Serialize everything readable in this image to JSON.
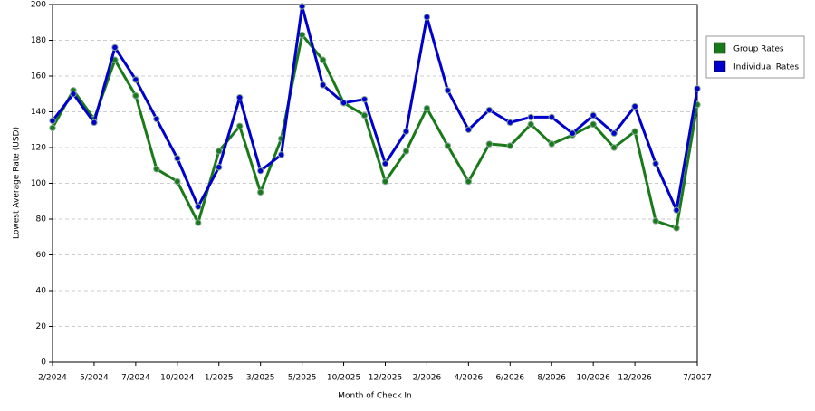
{
  "chart_data": {
    "type": "line",
    "x_label": "Month of Check In",
    "y_label": "Lowest Average Rate (USD)",
    "categories": [
      "2/2024",
      null,
      "5/2024",
      null,
      "7/2024",
      null,
      "10/2024",
      null,
      "1/2025",
      null,
      "3/2025",
      null,
      "5/2025",
      null,
      "10/2025",
      null,
      "12/2025",
      null,
      "2/2026",
      null,
      "4/2026",
      null,
      "6/2026",
      null,
      "8/2026",
      null,
      "10/2026",
      null,
      "12/2026",
      null,
      null,
      "7/2027"
    ],
    "series": [
      {
        "name": "Group Rates",
        "color": "#1a7a1a",
        "values": [
          131,
          152,
          136,
          169,
          149,
          108,
          101,
          78,
          118,
          132,
          95,
          125,
          183,
          169,
          145,
          138,
          101,
          118,
          142,
          121,
          101,
          122,
          121,
          133,
          122,
          127,
          133,
          120,
          129,
          79,
          75,
          144
        ]
      },
      {
        "name": "Individual Rates",
        "color": "#0000cc",
        "values": [
          135,
          150,
          134,
          176,
          158,
          136,
          114,
          87,
          109,
          148,
          107,
          116,
          199,
          155,
          145,
          147,
          111,
          129,
          193,
          152,
          130,
          141,
          134,
          137,
          137,
          128,
          138,
          128,
          143,
          111,
          85,
          153
        ]
      }
    ],
    "ylim": [
      0,
      200
    ],
    "yticks": [
      0,
      20,
      40,
      60,
      80,
      100,
      120,
      140,
      160,
      180,
      200
    ],
    "grid": true,
    "legend": "right"
  }
}
